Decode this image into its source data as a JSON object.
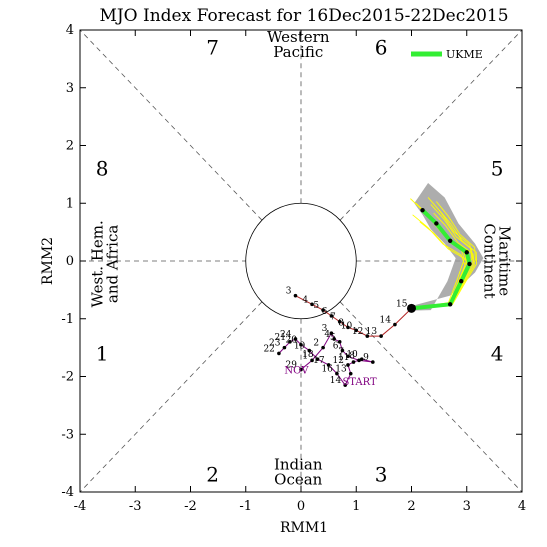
{
  "chart_data": {
    "type": "scatter",
    "title": "MJO Index Forecast for 16Dec2015-22Dec2015",
    "xlabel": "RMM1",
    "ylabel": "RMM2",
    "xlim": [
      -4,
      4
    ],
    "ylim": [
      -4,
      4
    ],
    "xticks": [
      "-4",
      "-3",
      "-2",
      "-1",
      "0",
      "1",
      "2",
      "3",
      "4"
    ],
    "yticks": [
      "-4",
      "-3",
      "-2",
      "-1",
      "0",
      "1",
      "2",
      "3",
      "4"
    ],
    "grid": false,
    "legend_placement": "top-right",
    "phases": [
      {
        "label": "1",
        "x": -3.6,
        "y": -1.6
      },
      {
        "label": "2",
        "x": -1.6,
        "y": -3.7
      },
      {
        "label": "3",
        "x": 1.45,
        "y": -3.7
      },
      {
        "label": "4",
        "x": 3.55,
        "y": -1.6
      },
      {
        "label": "5",
        "x": 3.55,
        "y": 1.6
      },
      {
        "label": "6",
        "x": 1.45,
        "y": 3.7
      },
      {
        "label": "7",
        "x": -1.6,
        "y": 3.7
      },
      {
        "label": "8",
        "x": -3.6,
        "y": 1.6
      }
    ],
    "regions": [
      {
        "lines": [
          "Western",
          "Pacific"
        ],
        "x": -0.05,
        "y": 3.75,
        "rotate": 0
      },
      {
        "lines": [
          "Indian",
          "Ocean"
        ],
        "x": -0.05,
        "y": -3.65,
        "rotate": 0
      },
      {
        "lines": [
          "West. Hem.",
          "and Africa"
        ],
        "x": -3.55,
        "y": -0.05,
        "rotate": -90
      },
      {
        "lines": [
          "Maritime",
          "Continent"
        ],
        "x": 3.55,
        "y": 0.0,
        "rotate": 90
      }
    ],
    "start_label": "START",
    "month_label": "NOV",
    "series": [
      {
        "name": "observed-dec",
        "color": "#b22222",
        "x": [
          -0.1,
          0.2,
          0.4,
          0.55,
          0.7,
          0.85,
          1.0,
          1.2,
          1.45,
          1.7,
          2.0
        ],
        "y": [
          -0.6,
          -0.75,
          -0.85,
          -0.95,
          -1.05,
          -1.15,
          -1.2,
          -1.3,
          -1.3,
          -1.1,
          -0.82
        ],
        "labels": [
          "3",
          "4",
          "5",
          "6",
          "7",
          "8",
          "10",
          "12",
          "13",
          "14",
          "15"
        ]
      },
      {
        "name": "observed-nov",
        "color": "#800080",
        "x": [
          -0.4,
          -0.3,
          -0.2,
          -0.1,
          0.0,
          0.15,
          0.3,
          0.5,
          0.65,
          0.8,
          0.9,
          0.85,
          0.95,
          1.1,
          1.3,
          1.05,
          0.85,
          0.75,
          0.7,
          0.6,
          0.55,
          0.4,
          0.2,
          0.0
        ],
        "y": [
          -1.6,
          -1.5,
          -1.4,
          -1.35,
          -1.45,
          -1.55,
          -1.7,
          -1.8,
          -1.95,
          -2.15,
          -1.95,
          -1.8,
          -1.75,
          -1.7,
          -1.75,
          -1.72,
          -1.65,
          -1.55,
          -1.4,
          -1.35,
          -1.25,
          -1.5,
          -1.72,
          -1.88
        ],
        "labels": [
          "22",
          "23",
          "21",
          "24",
          "20",
          "19",
          "18",
          "17",
          "16",
          "14",
          "13",
          "12",
          "11",
          "10",
          "9",
          "8",
          "7",
          "6",
          "5",
          "4",
          "3",
          "2",
          "1",
          "29"
        ]
      }
    ],
    "forecast": {
      "name": "UKME",
      "color": "#33ee33",
      "x": [
        2.0,
        2.7,
        2.9,
        3.05,
        3.0,
        2.7,
        2.45,
        2.2
      ],
      "y": [
        -0.82,
        -0.75,
        -0.35,
        -0.05,
        0.15,
        0.35,
        0.65,
        0.88
      ]
    },
    "ensemble_color": "#ffff00",
    "spread_color": "#999999"
  }
}
